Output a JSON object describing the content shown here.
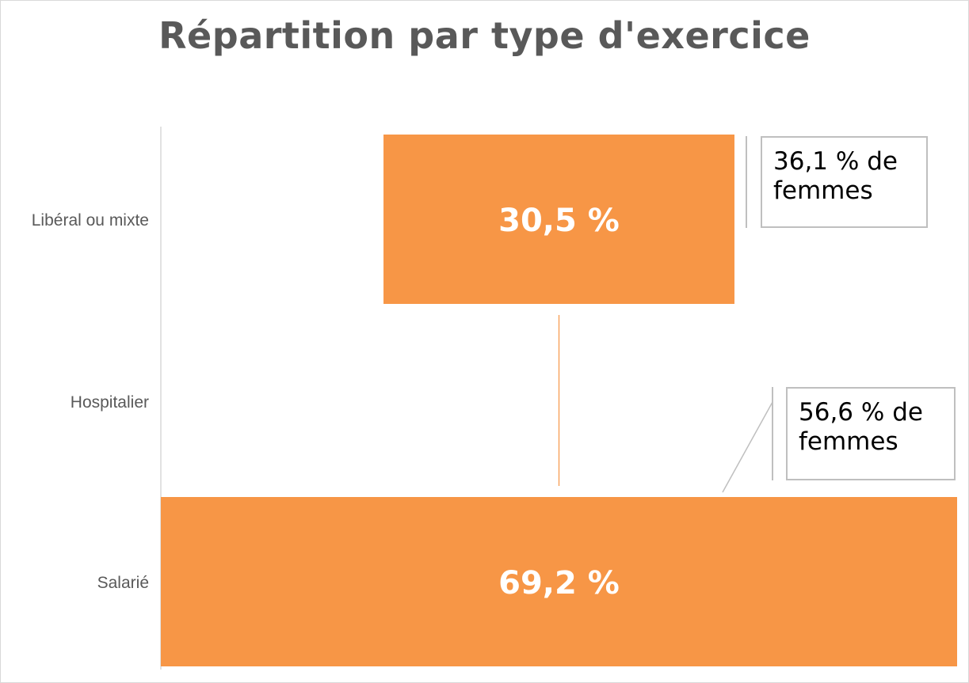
{
  "chart_data": {
    "type": "bar",
    "orientation": "horizontal",
    "title": "Répartition par type d'exercice",
    "categories": [
      "Libéral ou mixte",
      "Hospitalier",
      "Salarié"
    ],
    "values": [
      30.5,
      0,
      69.2
    ],
    "value_labels": [
      "30,5 %",
      "",
      "69,2 %"
    ],
    "xlim": [
      0,
      100
    ],
    "grid": false,
    "legend": "none",
    "colors": {
      "bar": "#F79646",
      "connector": "#F79646",
      "axis": "#d9d9d9",
      "callout_line": "#bfbfbf"
    },
    "annotations": [
      {
        "category": "Libéral ou mixte",
        "text": "36,1 % de femmes"
      },
      {
        "category": "Salarié",
        "text": "56,6 % de femmes"
      }
    ]
  }
}
